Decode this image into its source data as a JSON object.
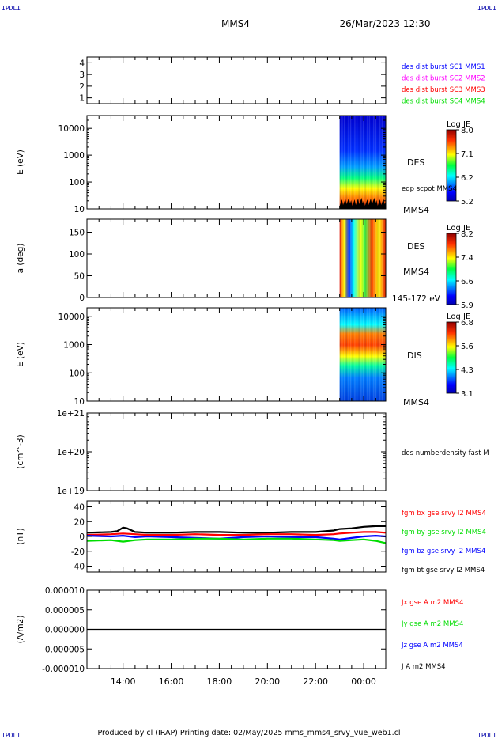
{
  "header": {
    "corner_tl": "IPDLI",
    "corner_tr": "IPDLI",
    "corner_bl": "IPDLI",
    "corner_br": "IPDLI",
    "spacecraft": "MMS4",
    "datetime": "26/Mar/2023 12:30"
  },
  "footer": {
    "text": "Produced by cl (IRAP)   Printing date: 02/May/2025   mms_mms4_srvy_vue_web1.cl"
  },
  "colors": {
    "blue": "#0000ff",
    "magenta": "#ff00ff",
    "red": "#ff0000",
    "green": "#00dd00",
    "black": "#000000"
  },
  "chart_data": [
    {
      "id": "burst",
      "type": "line",
      "ylabel": "",
      "ylim": [
        0.5,
        4.5
      ],
      "yticks": [
        1,
        2,
        3,
        4
      ],
      "ytick_labels": [
        "1",
        "2",
        "3",
        "4"
      ],
      "legend": [
        {
          "label": "des dist burst SC1 MMS1",
          "color": "#0000ff"
        },
        {
          "label": "des dist burst SC2 MMS2",
          "color": "#ff00ff"
        },
        {
          "label": "des dist burst SC3 MMS3",
          "color": "#ff0000"
        },
        {
          "label": "des dist burst SC4 MMS4",
          "color": "#00dd00"
        }
      ],
      "series": []
    },
    {
      "id": "des-energy",
      "type": "heatmap",
      "ylabel": "E (eV)",
      "yscale": "log",
      "ylim": [
        10,
        30000
      ],
      "yticks": [
        10,
        100,
        1000,
        10000
      ],
      "ytick_labels": [
        "10",
        "100",
        "1000",
        "10000"
      ],
      "side_label": "DES",
      "side_label2": "MMS4",
      "overlay_label": "edp scpot MMS4",
      "colorbar": {
        "title": "Log JE",
        "min": 5.2,
        "max": 8.0,
        "ticks": [
          "8.0",
          "7.1",
          "6.2",
          "5.2"
        ]
      },
      "data_interval": [
        "23:00",
        "00:55"
      ]
    },
    {
      "id": "des-pitch",
      "type": "heatmap",
      "ylabel": "a (deg)",
      "ylim": [
        0,
        180
      ],
      "yticks": [
        0,
        50,
        100,
        150
      ],
      "ytick_labels": [
        "0",
        "50",
        "100",
        "150"
      ],
      "side_label": "DES",
      "side_label2": "MMS4",
      "energy_range": "145-172 eV",
      "colorbar": {
        "title": "Log JE",
        "min": 5.9,
        "max": 8.2,
        "ticks": [
          "8.2",
          "7.4",
          "6.6",
          "5.9"
        ]
      },
      "data_interval": [
        "23:00",
        "00:55"
      ]
    },
    {
      "id": "dis-energy",
      "type": "heatmap",
      "ylabel": "E (eV)",
      "yscale": "log",
      "ylim": [
        10,
        20000
      ],
      "yticks": [
        10,
        100,
        1000,
        10000
      ],
      "ytick_labels": [
        "10",
        "100",
        "1000",
        "10000"
      ],
      "side_label": "DIS",
      "side_label2": "MMS4",
      "colorbar": {
        "title": "Log JE",
        "min": 3.1,
        "max": 6.8,
        "ticks": [
          "6.8",
          "5.6",
          "4.3",
          "3.1"
        ]
      },
      "data_interval": [
        "23:00",
        "00:55"
      ]
    },
    {
      "id": "density",
      "type": "line",
      "ylabel": "(cm^-3)",
      "yscale": "log",
      "ylim": [
        1e+19,
        1e+21
      ],
      "yticks": [
        1e+19,
        1e+20,
        1e+21
      ],
      "ytick_labels": [
        "1e+19",
        "1e+20",
        "1e+21"
      ],
      "legend": [
        {
          "label": "des numberdensity fast M",
          "color": "#000000"
        }
      ],
      "series": []
    },
    {
      "id": "fgm",
      "type": "line",
      "ylabel": "(nT)",
      "ylim": [
        -48,
        48
      ],
      "yticks": [
        -40,
        -20,
        0,
        20,
        40
      ],
      "ytick_labels": [
        "-40",
        "-20",
        "0",
        "20",
        "40"
      ],
      "legend": [
        {
          "label": "fgm bx gse srvy l2 MMS4",
          "color": "#ff0000"
        },
        {
          "label": "fgm by gse srvy l2 MMS4",
          "color": "#00dd00"
        },
        {
          "label": "fgm bz gse srvy l2 MMS4",
          "color": "#0000ff"
        },
        {
          "label": "fgm bt gse srvy l2 MMS4",
          "color": "#000000"
        }
      ],
      "series": [
        {
          "color": "#000000",
          "x": [
            "12:30",
            "13:30",
            "13:45",
            "14:00",
            "14:10",
            "14:30",
            "15:00",
            "16:00",
            "17:00",
            "18:00",
            "19:00",
            "20:00",
            "21:00",
            "22:00",
            "22:45",
            "23:00",
            "23:30",
            "00:00",
            "00:30",
            "00:55"
          ],
          "y": [
            5,
            6,
            7,
            12,
            11,
            6,
            5,
            5,
            6,
            6,
            5,
            5,
            6,
            6,
            8,
            10,
            11,
            13,
            14,
            14
          ]
        },
        {
          "color": "#ff0000",
          "x": [
            "12:30",
            "13:30",
            "14:00",
            "14:30",
            "15:00",
            "16:00",
            "17:00",
            "18:00",
            "19:00",
            "20:00",
            "21:00",
            "22:00",
            "22:45",
            "23:00",
            "23:30",
            "00:00",
            "00:30",
            "00:55"
          ],
          "y": [
            2,
            3,
            4,
            3,
            2,
            2,
            3,
            2,
            2,
            3,
            3,
            2,
            3,
            4,
            5,
            6,
            6,
            5
          ]
        },
        {
          "color": "#0000ff",
          "x": [
            "12:30",
            "13:30",
            "14:00",
            "14:30",
            "15:00",
            "16:00",
            "17:00",
            "18:00",
            "19:00",
            "20:00",
            "21:00",
            "22:00",
            "22:45",
            "23:00",
            "23:30",
            "00:00",
            "00:30",
            "00:55"
          ],
          "y": [
            1,
            0,
            1,
            -1,
            0,
            -1,
            -2,
            -3,
            -1,
            0,
            -1,
            -1,
            -3,
            -4,
            -2,
            0,
            1,
            0
          ]
        },
        {
          "color": "#00dd00",
          "x": [
            "12:30",
            "13:30",
            "14:00",
            "14:30",
            "15:00",
            "16:00",
            "17:00",
            "18:00",
            "19:00",
            "20:00",
            "21:00",
            "22:00",
            "22:45",
            "23:00",
            "23:30",
            "00:00",
            "00:30",
            "00:55"
          ],
          "y": [
            -6,
            -5,
            -7,
            -5,
            -4,
            -4,
            -3,
            -3,
            -4,
            -3,
            -3,
            -4,
            -5,
            -6,
            -5,
            -4,
            -6,
            -9
          ]
        }
      ]
    },
    {
      "id": "current",
      "type": "line",
      "ylabel": "(A/m2)",
      "ylim": [
        -1e-05,
        1e-05
      ],
      "yticks": [
        -1e-05,
        -5e-06,
        0,
        5e-06,
        1e-05
      ],
      "ytick_labels": [
        "-0.000010",
        "-0.000005",
        "0.000000",
        "0.000005",
        "0.000010"
      ],
      "legend": [
        {
          "label": "Jx gse A m2 MMS4",
          "color": "#ff0000"
        },
        {
          "label": "Jy gse A m2 MMS4",
          "color": "#00dd00"
        },
        {
          "label": "Jz gse A m2 MMS4",
          "color": "#0000ff"
        },
        {
          "label": "J A m2 MMS4",
          "color": "#000000"
        }
      ],
      "series": [
        {
          "color": "#000000",
          "x": [
            "12:30",
            "00:55"
          ],
          "y": [
            0,
            0
          ]
        }
      ],
      "xticks": [
        "14:00",
        "16:00",
        "18:00",
        "20:00",
        "22:00",
        "00:00"
      ]
    }
  ]
}
